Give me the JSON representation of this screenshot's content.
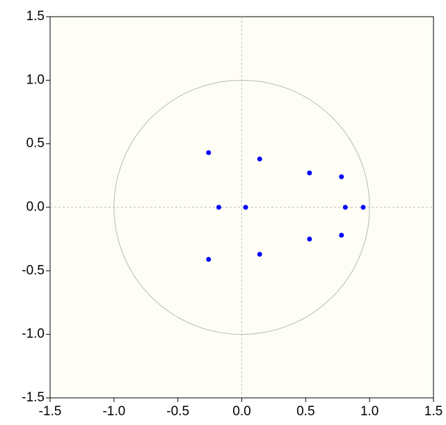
{
  "chart_data": {
    "type": "scatter",
    "series": [
      {
        "color": "#0000ff",
        "x": [
          -0.26,
          0.14,
          0.53,
          0.78,
          -0.18,
          0.03,
          0.81,
          0.95,
          0.53,
          0.78,
          0.14,
          -0.26
        ],
        "values": [
          0.43,
          0.38,
          0.27,
          0.24,
          0,
          0,
          0,
          0,
          -0.25,
          -0.22,
          -0.37,
          -0.41
        ]
      }
    ],
    "xlim": [
      -1.5,
      1.5
    ],
    "ylim": [
      -1.5,
      1.5
    ],
    "xticks": [
      -1.5,
      {
        "value": -1,
        "label": "-1.0"
      },
      -0.5,
      {
        "value": 0,
        "label": "0.0"
      },
      0.5,
      {
        "value": 1,
        "label": "1.0"
      },
      1.5
    ],
    "yticks": [
      -1.5,
      {
        "value": -1,
        "label": "-1.0"
      },
      -0.5,
      {
        "value": 0,
        "label": "0.0"
      },
      0.5,
      {
        "value": 1,
        "label": "1.0"
      },
      1.5
    ],
    "grid": false
  }
}
